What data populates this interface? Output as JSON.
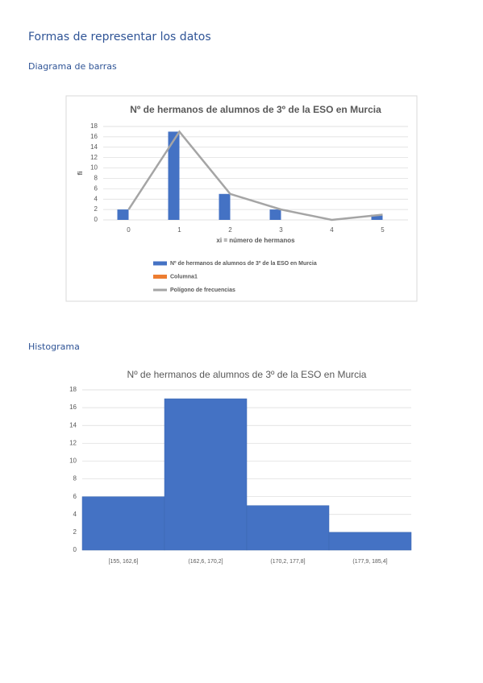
{
  "header": {
    "title": "Formas de representar los datos"
  },
  "sections": [
    {
      "title": "Diagrama de barras"
    },
    {
      "title": "Histograma"
    }
  ],
  "chart_data": [
    {
      "type": "bar",
      "title": "Nº de hermanos de alumnos de 3º de la ESO en Murcia",
      "xlabel": "xi = número de hermanos",
      "ylabel": "fi",
      "categories": [
        "0",
        "1",
        "2",
        "3",
        "4",
        "5"
      ],
      "series": [
        {
          "name": "Nº de hermanos de alumnos de 3º de la ESO en Murcia",
          "type": "bar",
          "color": "#4472c4",
          "values": [
            2,
            17,
            5,
            2,
            0,
            1
          ]
        },
        {
          "name": "Columna1",
          "type": "bar",
          "color": "#ed7d31",
          "values": [
            null,
            null,
            null,
            null,
            null,
            null
          ]
        },
        {
          "name": "Polígono de frecuencias",
          "type": "line",
          "color": "#a5a5a5",
          "values": [
            2,
            17,
            5,
            2,
            0,
            1
          ]
        }
      ],
      "ylim": [
        0,
        18
      ],
      "yticks": [
        0,
        2,
        4,
        6,
        8,
        10,
        12,
        14,
        16,
        18
      ],
      "grid": true,
      "legend": "bottom"
    },
    {
      "type": "histogram",
      "title": "Nº de hermanos de alumnos de 3º de la ESO en Murcia",
      "categories": [
        "[155, 162,6]",
        "(162,6, 170,2]",
        "(170,2, 177,8]",
        "(177,9, 185,4]"
      ],
      "values": [
        6,
        17,
        5,
        2
      ],
      "color": "#4472c4",
      "ylim": [
        0,
        18
      ],
      "yticks": [
        0,
        2,
        4,
        6,
        8,
        10,
        12,
        14,
        16,
        18
      ],
      "grid": true
    }
  ]
}
